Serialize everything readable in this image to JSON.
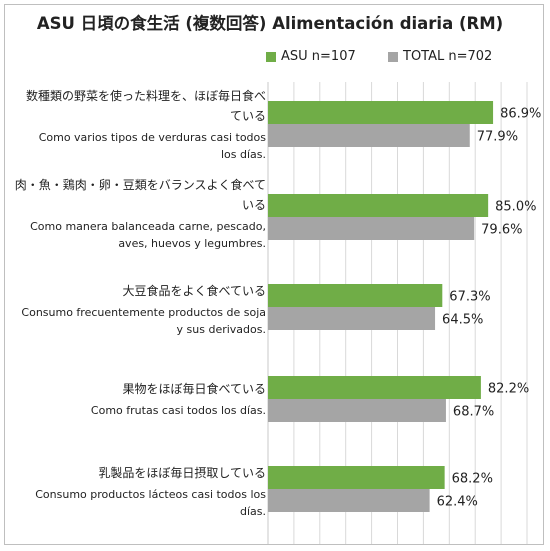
{
  "chart_data": {
    "type": "bar",
    "orientation": "horizontal",
    "title": "ASU 日頃の食生活 (複数回答) Alimentación diaria (RM)",
    "categories": [
      {
        "ja": "数種類の野菜を使った料理を、ほぼ毎日食べている",
        "es": "Como varios tipos de verduras casi todos los días."
      },
      {
        "ja": "肉・魚・鶏肉・卵・豆類をバランスよく食べている",
        "es": "Como manera balanceada carne, pescado, aves, huevos y legumbres."
      },
      {
        "ja": "大豆食品をよく食べている",
        "es": "Consumo frecuentemente productos de soja y sus derivados."
      },
      {
        "ja": "果物をほぼ毎日食べている",
        "es": "Como frutas casi todos los días."
      },
      {
        "ja": "乳製品をほぼ毎日摂取している",
        "es": "Consumo productos lácteos casi todos los días."
      }
    ],
    "series": [
      {
        "name": "ASU n=107",
        "color": "#70ad47",
        "values": [
          86.9,
          85.0,
          67.3,
          82.2,
          68.2
        ]
      },
      {
        "name": "TOTAL n=702",
        "color": "#a5a5a5",
        "values": [
          77.9,
          79.6,
          64.5,
          68.7,
          62.4
        ]
      }
    ],
    "value_suffix": "%",
    "xlim": [
      0,
      100
    ],
    "grid": true,
    "legend_position": "top-right"
  }
}
